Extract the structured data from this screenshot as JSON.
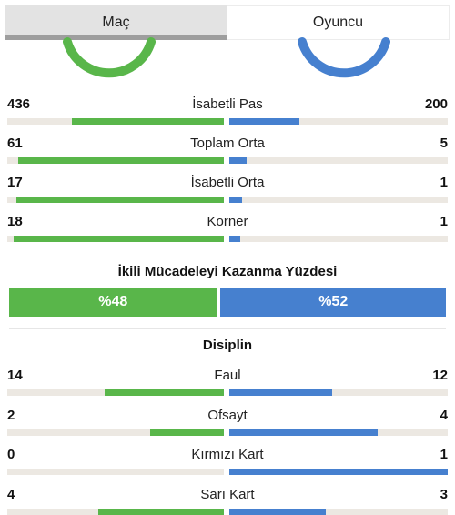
{
  "tabs": [
    {
      "label": "Maç",
      "active": true
    },
    {
      "label": "Oyuncu",
      "active": false
    }
  ],
  "colors": {
    "home": "#59b64a",
    "away": "#4680cf",
    "track": "#ece8e2"
  },
  "stats": [
    {
      "label": "İsabetli Pas",
      "home": "436",
      "away": "200",
      "home_fill": 0.7,
      "away_fill": 0.32
    },
    {
      "label": "Toplam Orta",
      "home": "61",
      "away": "5",
      "home_fill": 0.95,
      "away_fill": 0.08
    },
    {
      "label": "İsabetli Orta",
      "home": "17",
      "away": "1",
      "home_fill": 0.96,
      "away_fill": 0.06
    },
    {
      "label": "Korner",
      "home": "18",
      "away": "1",
      "home_fill": 0.97,
      "away_fill": 0.05
    }
  ],
  "duel": {
    "title": "İkili Mücadeleyi Kazanma Yüzdesi",
    "home": "%48",
    "away": "%52",
    "home_pct": 48,
    "away_pct": 52
  },
  "discipline": {
    "title": "Disiplin",
    "stats": [
      {
        "label": "Faul",
        "home": "14",
        "away": "12",
        "home_fill": 0.55,
        "away_fill": 0.47
      },
      {
        "label": "Ofsayt",
        "home": "2",
        "away": "4",
        "home_fill": 0.34,
        "away_fill": 0.68
      },
      {
        "label": "Kırmızı Kart",
        "home": "0",
        "away": "1",
        "home_fill": 0.0,
        "away_fill": 1.0
      },
      {
        "label": "Sarı Kart",
        "home": "4",
        "away": "3",
        "home_fill": 0.58,
        "away_fill": 0.44
      }
    ]
  }
}
